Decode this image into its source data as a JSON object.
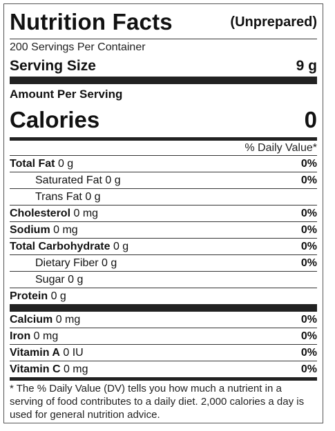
{
  "header": {
    "title": "Nutrition Facts",
    "subtitle": "(Unprepared)"
  },
  "servings_per_container": "200 Servings Per Container",
  "serving_size": {
    "label": "Serving Size",
    "value": "9 g"
  },
  "amount_per_serving": "Amount Per Serving",
  "calories": {
    "label": "Calories",
    "value": "0"
  },
  "daily_value_header": "% Daily Value*",
  "nutrients": [
    {
      "name": "Total Fat",
      "amount": "0 g",
      "dv": "0%"
    },
    {
      "name": "Saturated Fat",
      "amount": "0 g",
      "dv": "0%"
    },
    {
      "name": "Trans Fat",
      "amount": "0 g",
      "dv": ""
    },
    {
      "name": "Cholesterol",
      "amount": "0 mg",
      "dv": "0%"
    },
    {
      "name": "Sodium",
      "amount": "0 mg",
      "dv": "0%"
    },
    {
      "name": "Total Carbohydrate",
      "amount": "0 g",
      "dv": "0%"
    },
    {
      "name": "Dietary Fiber",
      "amount": "0 g",
      "dv": "0%"
    },
    {
      "name": "Sugar",
      "amount": "0 g",
      "dv": ""
    },
    {
      "name": "Protein",
      "amount": "0 g",
      "dv": ""
    }
  ],
  "vitamins": [
    {
      "name": "Calcium",
      "amount": "0 mg",
      "dv": "0%"
    },
    {
      "name": "Iron",
      "amount": "0 mg",
      "dv": "0%"
    },
    {
      "name": "Vitamin A",
      "amount": "0 IU",
      "dv": "0%"
    },
    {
      "name": "Vitamin C",
      "amount": "0 mg",
      "dv": "0%"
    }
  ],
  "footnote": "* The % Daily Value (DV) tells you how much a nutrient in a serving of food contributes to a daily diet. 2,000 calories a day is used for general nutrition advice."
}
